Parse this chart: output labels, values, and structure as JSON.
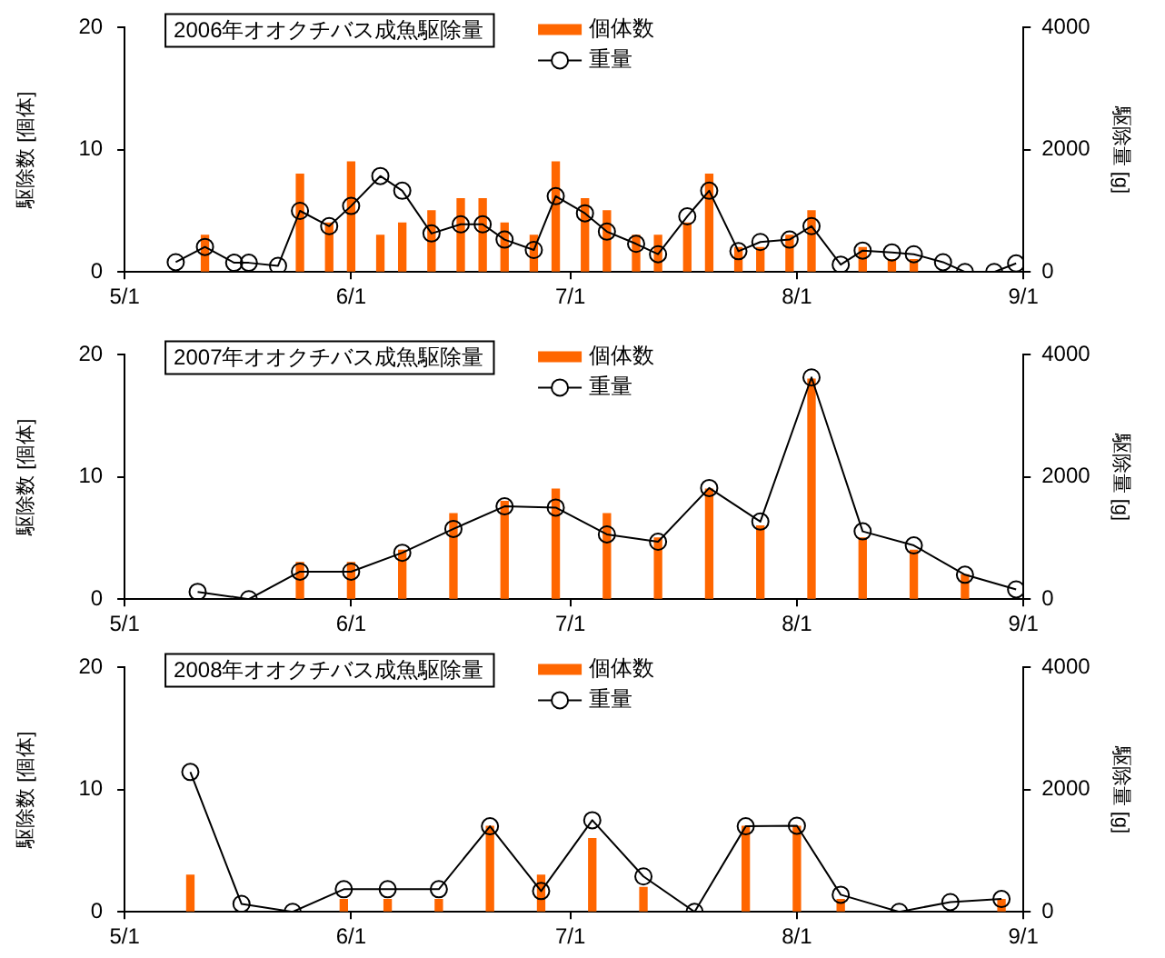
{
  "chart_data": [
    {
      "type": "bar",
      "title": "2006年オオクチバス成魚駆除量",
      "ylabel": "駆除数 [個体]",
      "y2label": "駆除量 [g]",
      "xlim": [
        "2006-05-01",
        "2006-09-01"
      ],
      "xticks": [
        {
          "value": "2006-05-01",
          "label": "5/1"
        },
        {
          "value": "2006-06-01",
          "label": "6/1"
        },
        {
          "value": "2006-07-01",
          "label": "7/1"
        },
        {
          "value": "2006-08-01",
          "label": "8/1"
        },
        {
          "value": "2006-09-01",
          "label": "9/1"
        }
      ],
      "ylim": [
        0,
        20
      ],
      "yticks": [
        0,
        10,
        20
      ],
      "y2lim": [
        0,
        4000
      ],
      "y2ticks": [
        0,
        2000,
        4000
      ],
      "legend": "top",
      "grid": false,
      "x": [
        "2006-05-08",
        "2006-05-12",
        "2006-05-16",
        "2006-05-18",
        "2006-05-22",
        "2006-05-25",
        "2006-05-29",
        "2006-06-01",
        "2006-06-05",
        "2006-06-08",
        "2006-06-12",
        "2006-06-16",
        "2006-06-19",
        "2006-06-22",
        "2006-06-26",
        "2006-06-29",
        "2006-07-03",
        "2006-07-06",
        "2006-07-10",
        "2006-07-13",
        "2006-07-17",
        "2006-07-20",
        "2006-07-24",
        "2006-07-27",
        "2006-07-31",
        "2006-08-03",
        "2006-08-07",
        "2006-08-10",
        "2006-08-14",
        "2006-08-17",
        "2006-08-21",
        "2006-08-24",
        "2006-08-28",
        "2006-08-31"
      ],
      "series": [
        {
          "name": "個体数",
          "color": "#ff6600",
          "x": [
            "2006-05-12",
            "2006-05-25",
            "2006-05-29",
            "2006-06-01",
            "2006-06-05",
            "2006-06-08",
            "2006-06-12",
            "2006-06-16",
            "2006-06-19",
            "2006-06-22",
            "2006-06-26",
            "2006-06-29",
            "2006-07-03",
            "2006-07-06",
            "2006-07-10",
            "2006-07-13",
            "2006-07-17",
            "2006-07-20",
            "2006-07-24",
            "2006-07-27",
            "2006-07-31",
            "2006-08-03",
            "2006-08-10",
            "2006-08-14",
            "2006-08-17"
          ],
          "values": [
            3,
            8,
            4,
            9,
            3,
            4,
            5,
            6,
            6,
            4,
            3,
            9,
            6,
            5,
            3,
            3,
            4,
            8,
            2,
            2,
            3,
            5,
            2,
            1,
            1
          ]
        },
        {
          "name": "重量",
          "type": "line",
          "axis": "y2",
          "color": "#000000",
          "marker": "circle",
          "values": [
            160,
            410,
            150,
            150,
            100,
            1000,
            750,
            1080,
            1570,
            1330,
            630,
            780,
            780,
            530,
            360,
            1240,
            960,
            660,
            460,
            290,
            910,
            1330,
            340,
            490,
            530,
            750,
            120,
            350,
            320,
            290,
            160,
            0,
            0,
            140
          ]
        }
      ]
    },
    {
      "type": "bar",
      "title": "2007年オオクチバス成魚駆除量",
      "ylabel": "駆除数 [個体]",
      "y2label": "駆除量 [g]",
      "xlim": [
        "2007-05-01",
        "2007-09-01"
      ],
      "xticks": [
        {
          "value": "2007-05-01",
          "label": "5/1"
        },
        {
          "value": "2007-06-01",
          "label": "6/1"
        },
        {
          "value": "2007-07-01",
          "label": "7/1"
        },
        {
          "value": "2007-08-01",
          "label": "8/1"
        },
        {
          "value": "2007-09-01",
          "label": "9/1"
        }
      ],
      "ylim": [
        0,
        20
      ],
      "yticks": [
        0,
        10,
        20
      ],
      "y2lim": [
        0,
        4000
      ],
      "y2ticks": [
        0,
        2000,
        4000
      ],
      "legend": "top",
      "grid": false,
      "x": [
        "2007-05-11",
        "2007-05-18",
        "2007-05-25",
        "2007-06-01",
        "2007-06-08",
        "2007-06-15",
        "2007-06-22",
        "2007-06-29",
        "2007-07-06",
        "2007-07-13",
        "2007-07-20",
        "2007-07-27",
        "2007-08-03",
        "2007-08-10",
        "2007-08-17",
        "2007-08-24",
        "2007-08-31"
      ],
      "series": [
        {
          "name": "個体数",
          "color": "#ff6600",
          "x": [
            "2007-05-25",
            "2007-06-01",
            "2007-06-08",
            "2007-06-15",
            "2007-06-22",
            "2007-06-29",
            "2007-07-06",
            "2007-07-13",
            "2007-07-20",
            "2007-07-27",
            "2007-08-03",
            "2007-08-10",
            "2007-08-17",
            "2007-08-24"
          ],
          "values": [
            3,
            3,
            4,
            7,
            8,
            9,
            7,
            5,
            9,
            6,
            18,
            5,
            4,
            2
          ]
        },
        {
          "name": "重量",
          "type": "line",
          "axis": "y2",
          "color": "#000000",
          "marker": "circle",
          "values": [
            120,
            0,
            450,
            450,
            760,
            1150,
            1520,
            1500,
            1060,
            940,
            1820,
            1270,
            3630,
            1110,
            880,
            400,
            160
          ]
        }
      ]
    },
    {
      "type": "bar",
      "title": "2008年オオクチバス成魚駆除量",
      "ylabel": "駆除数 [個体]",
      "y2label": "駆除量 [g]",
      "xlim": [
        "2008-05-01",
        "2008-09-01"
      ],
      "xticks": [
        {
          "value": "2008-05-01",
          "label": "5/1"
        },
        {
          "value": "2008-06-01",
          "label": "6/1"
        },
        {
          "value": "2008-07-01",
          "label": "7/1"
        },
        {
          "value": "2008-08-01",
          "label": "8/1"
        },
        {
          "value": "2008-09-01",
          "label": "9/1"
        }
      ],
      "ylim": [
        0,
        20
      ],
      "yticks": [
        0,
        10,
        20
      ],
      "y2lim": [
        0,
        4000
      ],
      "y2ticks": [
        0,
        2000,
        4000
      ],
      "legend": "top",
      "grid": false,
      "x": [
        "2008-05-10",
        "2008-05-17",
        "2008-05-24",
        "2008-05-31",
        "2008-06-06",
        "2008-06-13",
        "2008-06-20",
        "2008-06-27",
        "2008-07-04",
        "2008-07-11",
        "2008-07-18",
        "2008-07-25",
        "2008-08-01",
        "2008-08-07",
        "2008-08-15",
        "2008-08-22",
        "2008-08-29"
      ],
      "series": [
        {
          "name": "個体数",
          "color": "#ff6600",
          "x": [
            "2008-05-10",
            "2008-05-31",
            "2008-06-06",
            "2008-06-13",
            "2008-06-20",
            "2008-06-27",
            "2008-07-04",
            "2008-07-11",
            "2008-07-25",
            "2008-08-01",
            "2008-08-07",
            "2008-08-29"
          ],
          "values": [
            3,
            1,
            1,
            1,
            7,
            3,
            6,
            2,
            7,
            7,
            1,
            1
          ]
        },
        {
          "name": "重量",
          "type": "line",
          "axis": "y2",
          "color": "#000000",
          "marker": "circle",
          "values": [
            2290,
            130,
            0,
            370,
            370,
            370,
            1400,
            340,
            1500,
            580,
            0,
            1400,
            1410,
            280,
            0,
            160,
            210
          ]
        }
      ]
    }
  ]
}
